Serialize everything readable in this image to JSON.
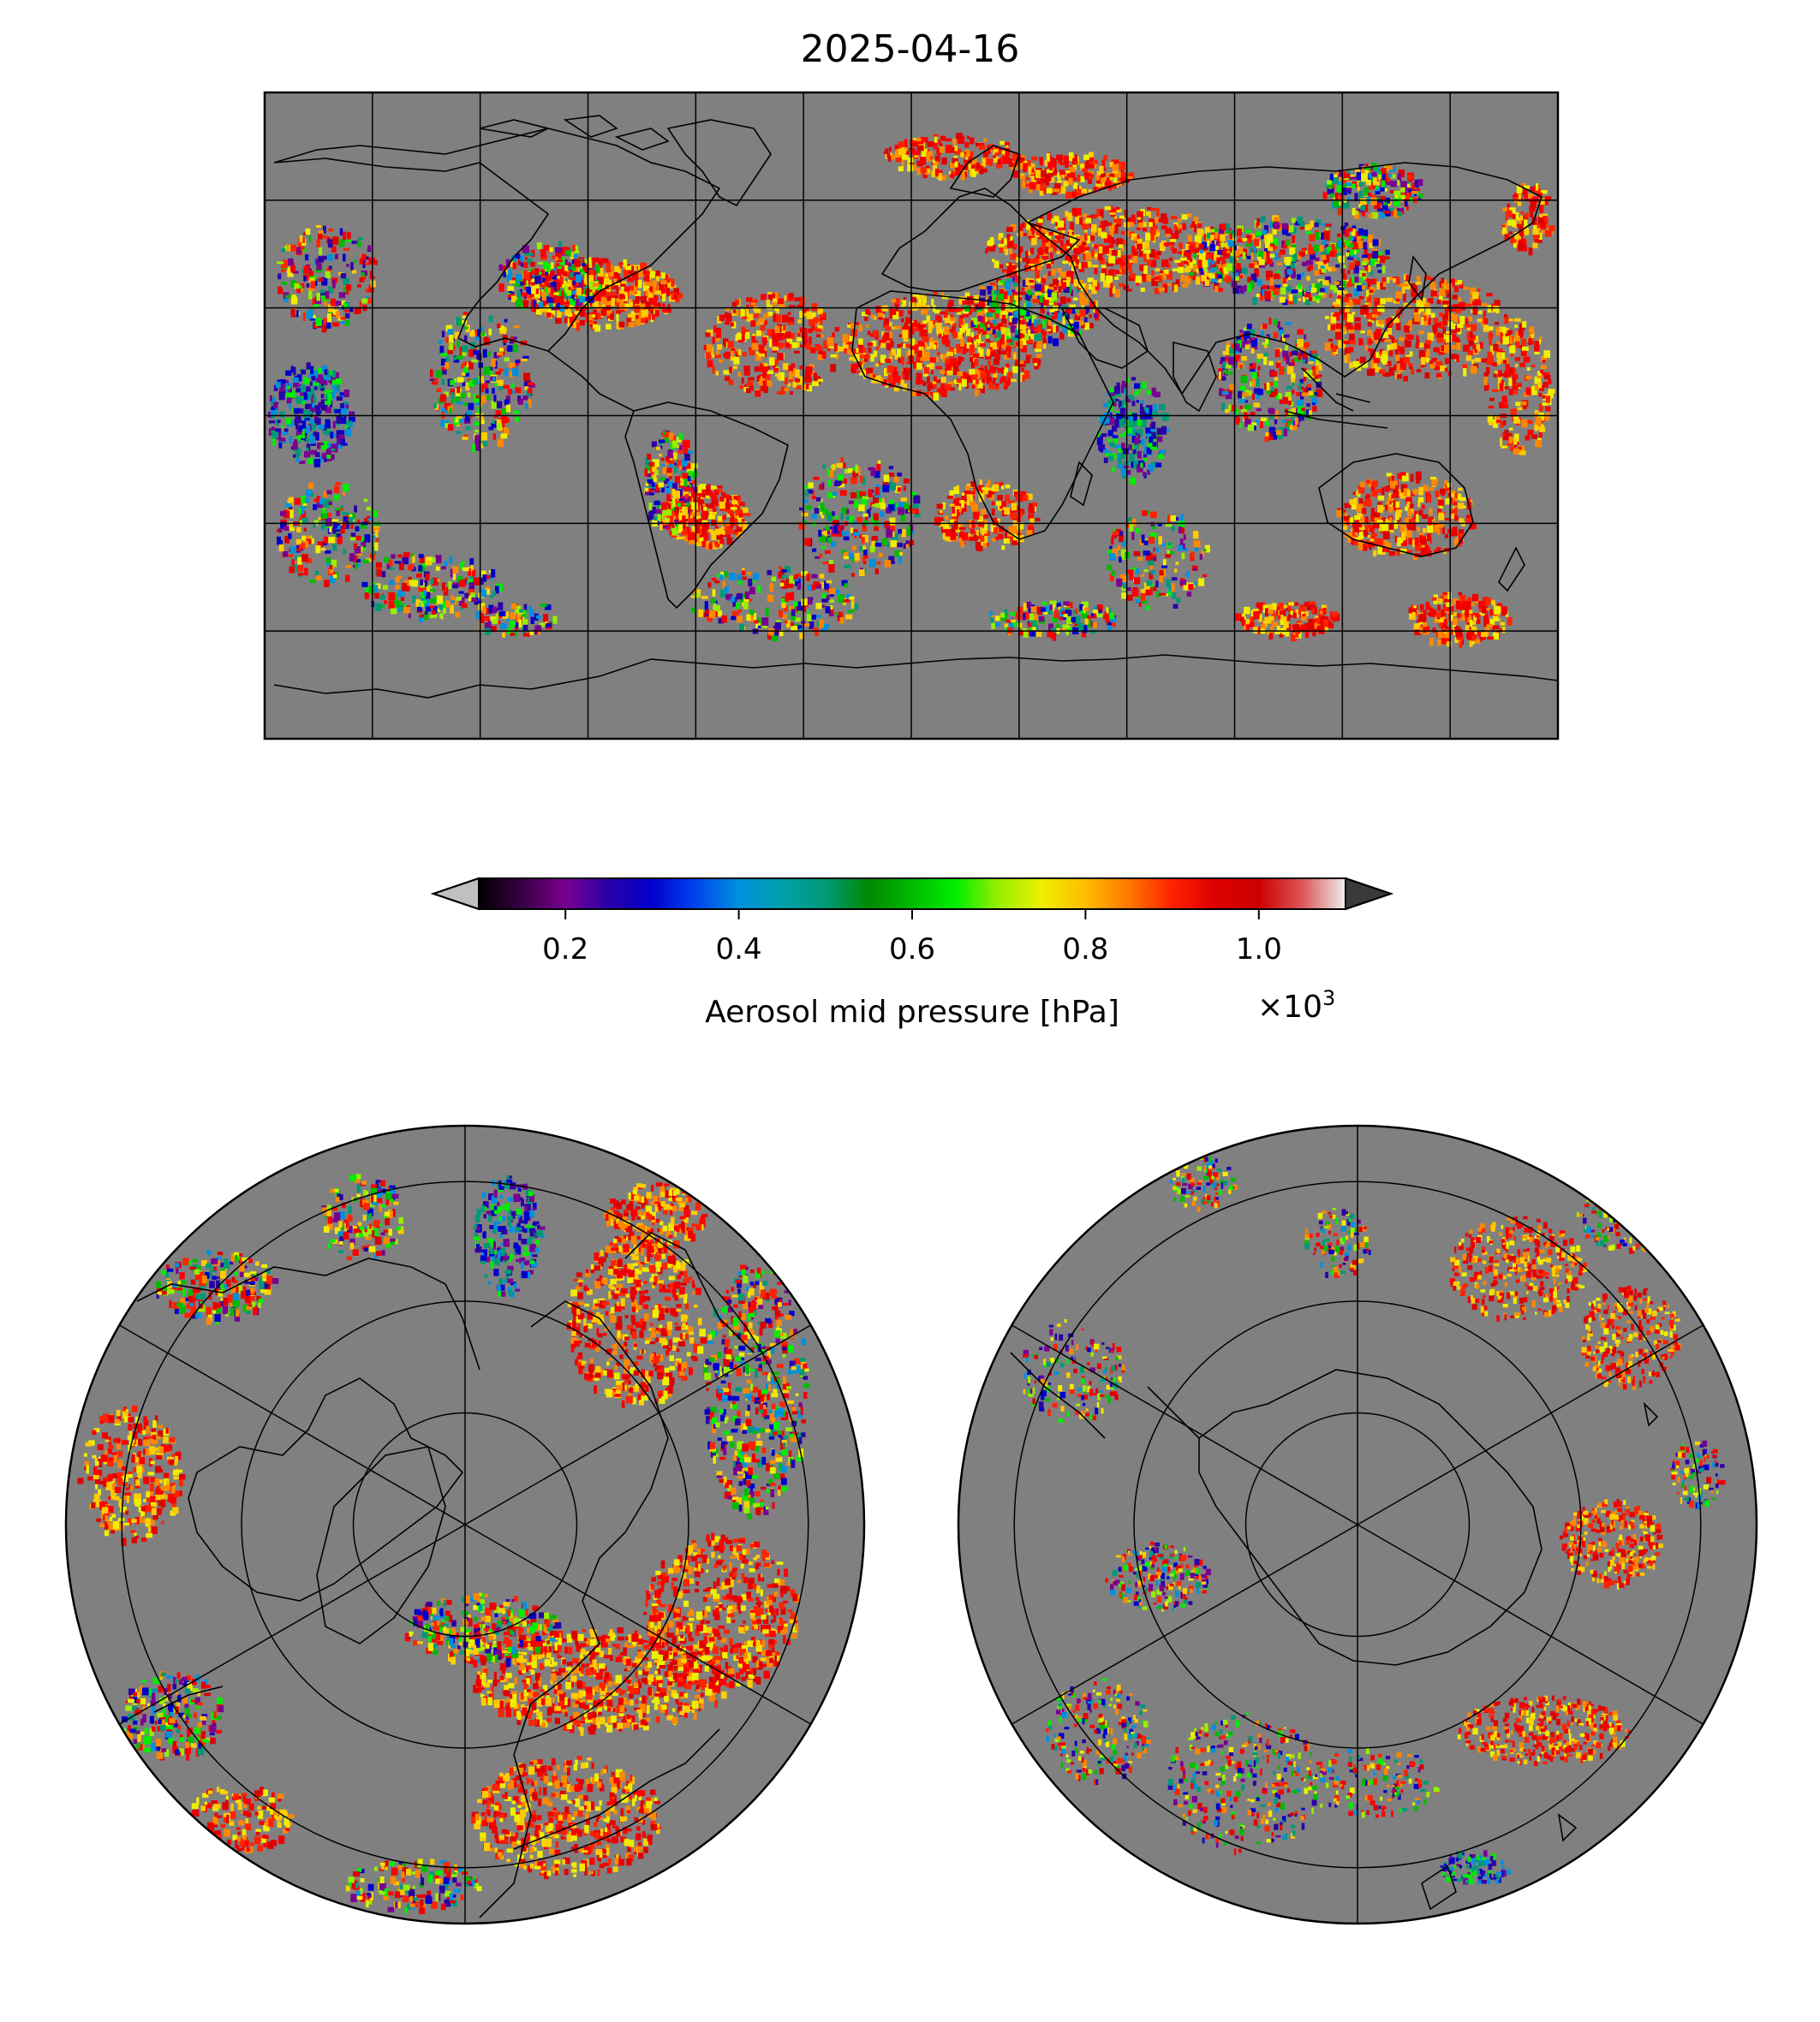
{
  "title": "2025-04-16",
  "colorbar": {
    "label": "Aerosol mid pressure [hPa]",
    "multiplier": "×10",
    "multiplier_exp": "3",
    "ticks": [
      {
        "value": 0.2,
        "label": "0.2"
      },
      {
        "value": 0.4,
        "label": "0.4"
      },
      {
        "value": 0.6,
        "label": "0.6"
      },
      {
        "value": 0.8,
        "label": "0.8"
      },
      {
        "value": 1.0,
        "label": "1.0"
      }
    ],
    "range": [
      0.1,
      1.1
    ],
    "extend": "both",
    "under_color": "#c0c0c0",
    "over_color": "#3a3a3a",
    "stops": [
      "#000000",
      "#3a0044",
      "#7a0090",
      "#2a00a8",
      "#0000cc",
      "#0044ee",
      "#0090dd",
      "#00a0aa",
      "#009977",
      "#008800",
      "#00bb00",
      "#00ee00",
      "#99ee00",
      "#eeee00",
      "#ffbb00",
      "#ff7700",
      "#ff2200",
      "#dd0000",
      "#cc0000",
      "#dd5555",
      "#eeeeee"
    ]
  },
  "maps": {
    "background_color": "#808080",
    "projections": [
      "PlateCarree global",
      "North Polar Stereographic",
      "South Polar Stereographic"
    ],
    "gridlines": true
  }
}
